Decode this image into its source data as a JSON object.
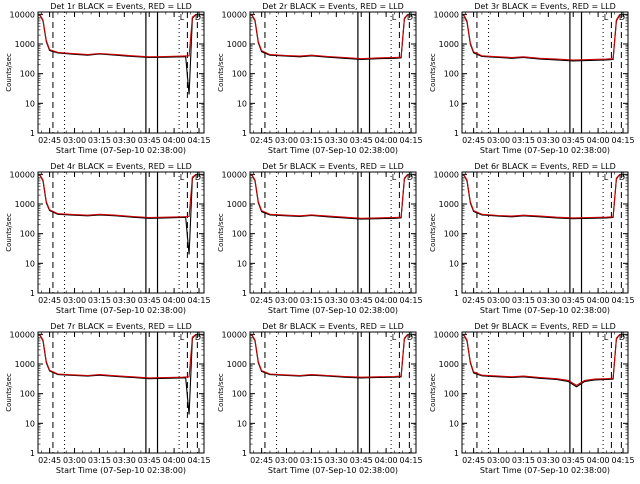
{
  "chart_data": [
    {
      "type": "line",
      "title": "Det 1r BLACK = Events, RED = LLD",
      "xlabel": "Start Time (07-Sep-10 02:38:00)",
      "ylabel": "Counts/sec",
      "log_y": true,
      "ylim": [
        1,
        12000
      ],
      "xlim": [
        "02:38",
        "04:18"
      ],
      "x_ticks": [
        "02:45",
        "03:00",
        "03:15",
        "03:30",
        "03:45",
        "04:00",
        "04:15"
      ],
      "y_ticks": [
        "1",
        "10",
        "100",
        "1000",
        "10000"
      ],
      "flag_labels": [
        "L",
        "D"
      ],
      "series": [
        {
          "name": "Events",
          "color": "#000000",
          "x": [
            "02:39",
            "02:41",
            "02:43",
            "02:45",
            "02:50",
            "03:00",
            "03:08",
            "03:15",
            "03:25",
            "03:35",
            "03:45",
            "03:55",
            "04:05",
            "04:07",
            "04:09",
            "04:11",
            "04:13"
          ],
          "y": [
            9800,
            6000,
            1200,
            600,
            500,
            450,
            420,
            460,
            420,
            380,
            350,
            360,
            370,
            370,
            20,
            7500,
            9800
          ]
        },
        {
          "name": "LLD",
          "color": "#cc0000",
          "x": [
            "02:39",
            "02:41",
            "02:43",
            "02:45",
            "02:50",
            "03:00",
            "03:08",
            "03:15",
            "03:25",
            "03:35",
            "03:45",
            "03:55",
            "04:05",
            "04:09",
            "04:11",
            "04:13"
          ],
          "y": [
            9900,
            6500,
            1300,
            650,
            520,
            470,
            440,
            480,
            440,
            400,
            370,
            380,
            390,
            400,
            8000,
            9900
          ]
        }
      ]
    },
    {
      "type": "line",
      "title": "Det 2r BLACK = Events, RED = LLD",
      "xlabel": "Start Time (07-Sep-10 02:38:00)",
      "ylabel": "Counts/sec",
      "log_y": true,
      "ylim": [
        1,
        12000
      ],
      "xlim": [
        "02:38",
        "04:18"
      ],
      "x_ticks": [
        "02:45",
        "03:00",
        "03:15",
        "03:30",
        "03:45",
        "04:00",
        "04:15"
      ],
      "y_ticks": [
        "1",
        "10",
        "100",
        "1000",
        "10000"
      ],
      "flag_labels": [
        "L",
        "D"
      ],
      "series": [
        {
          "name": "Events",
          "color": "#000000",
          "x": [
            "02:39",
            "02:41",
            "02:43",
            "02:45",
            "02:50",
            "03:00",
            "03:08",
            "03:15",
            "03:25",
            "03:35",
            "03:45",
            "03:55",
            "04:05",
            "04:09",
            "04:11",
            "04:13"
          ],
          "y": [
            9800,
            6000,
            1100,
            550,
            420,
            390,
            370,
            400,
            360,
            330,
            300,
            320,
            330,
            340,
            7000,
            9800
          ]
        },
        {
          "name": "LLD",
          "color": "#cc0000",
          "x": [
            "02:39",
            "02:41",
            "02:43",
            "02:45",
            "02:50",
            "03:00",
            "03:08",
            "03:15",
            "03:25",
            "03:35",
            "03:45",
            "03:55",
            "04:05",
            "04:09",
            "04:11",
            "04:13"
          ],
          "y": [
            9900,
            6500,
            1200,
            600,
            440,
            410,
            390,
            420,
            380,
            350,
            320,
            340,
            350,
            360,
            7500,
            9900
          ]
        }
      ]
    },
    {
      "type": "line",
      "title": "Det 3r BLACK = Events, RED = LLD",
      "xlabel": "Start Time (07-Sep-10 02:38:00)",
      "ylabel": "Counts/sec",
      "log_y": true,
      "ylim": [
        1,
        12000
      ],
      "xlim": [
        "02:38",
        "04:18"
      ],
      "x_ticks": [
        "02:45",
        "03:00",
        "03:15",
        "03:30",
        "03:45",
        "04:00",
        "04:15"
      ],
      "y_ticks": [
        "1",
        "10",
        "100",
        "1000",
        "10000"
      ],
      "flag_labels": [
        "L",
        "D"
      ],
      "series": [
        {
          "name": "Events",
          "color": "#000000",
          "x": [
            "02:39",
            "02:41",
            "02:43",
            "02:45",
            "02:50",
            "03:00",
            "03:08",
            "03:15",
            "03:25",
            "03:35",
            "03:45",
            "03:55",
            "04:05",
            "04:09",
            "04:11",
            "04:13"
          ],
          "y": [
            9500,
            5500,
            1000,
            500,
            380,
            350,
            330,
            350,
            310,
            290,
            270,
            280,
            290,
            300,
            6000,
            9500
          ]
        },
        {
          "name": "LLD",
          "color": "#cc0000",
          "x": [
            "02:39",
            "02:41",
            "02:43",
            "02:45",
            "02:50",
            "03:00",
            "03:08",
            "03:15",
            "03:25",
            "03:35",
            "03:45",
            "03:55",
            "04:05",
            "04:09",
            "04:11",
            "04:13"
          ],
          "y": [
            9800,
            6000,
            1100,
            540,
            400,
            370,
            350,
            370,
            330,
            310,
            290,
            300,
            310,
            320,
            6500,
            9800
          ]
        }
      ]
    },
    {
      "type": "line",
      "title": "Det 4r BLACK = Events, RED = LLD",
      "xlabel": "Start Time (07-Sep-10 02:38:00)",
      "ylabel": "Counts/sec",
      "log_y": true,
      "ylim": [
        1,
        12000
      ],
      "xlim": [
        "02:38",
        "04:18"
      ],
      "x_ticks": [
        "02:45",
        "03:00",
        "03:15",
        "03:30",
        "03:45",
        "04:00",
        "04:15"
      ],
      "y_ticks": [
        "1",
        "10",
        "100",
        "1000",
        "10000"
      ],
      "flag_labels": [
        "L",
        "D"
      ],
      "series": [
        {
          "name": "Events",
          "color": "#000000",
          "x": [
            "02:39",
            "02:41",
            "02:43",
            "02:45",
            "02:50",
            "03:00",
            "03:08",
            "03:15",
            "03:25",
            "03:35",
            "03:45",
            "03:55",
            "04:05",
            "04:07",
            "04:09",
            "04:11",
            "04:13"
          ],
          "y": [
            9800,
            6000,
            1100,
            600,
            450,
            420,
            400,
            430,
            400,
            360,
            330,
            340,
            350,
            350,
            20,
            7500,
            9800
          ]
        },
        {
          "name": "LLD",
          "color": "#cc0000",
          "x": [
            "02:39",
            "02:41",
            "02:43",
            "02:45",
            "02:50",
            "03:00",
            "03:08",
            "03:15",
            "03:25",
            "03:35",
            "03:45",
            "03:55",
            "04:05",
            "04:09",
            "04:11",
            "04:13"
          ],
          "y": [
            9900,
            6500,
            1200,
            640,
            470,
            440,
            420,
            450,
            420,
            380,
            350,
            360,
            370,
            380,
            8000,
            9900
          ]
        }
      ]
    },
    {
      "type": "line",
      "title": "Det 5r BLACK = Events, RED = LLD",
      "xlabel": "Start Time (07-Sep-10 02:38:00)",
      "ylabel": "Counts/sec",
      "log_y": true,
      "ylim": [
        1,
        12000
      ],
      "xlim": [
        "02:38",
        "04:18"
      ],
      "x_ticks": [
        "02:45",
        "03:00",
        "03:15",
        "03:30",
        "03:45",
        "04:00",
        "04:15"
      ],
      "y_ticks": [
        "1",
        "10",
        "100",
        "1000",
        "10000"
      ],
      "flag_labels": [
        "L",
        "D"
      ],
      "series": [
        {
          "name": "Events",
          "color": "#000000",
          "x": [
            "02:39",
            "02:41",
            "02:43",
            "02:45",
            "02:50",
            "03:00",
            "03:08",
            "03:15",
            "03:25",
            "03:35",
            "03:45",
            "03:55",
            "04:05",
            "04:09",
            "04:11",
            "04:13"
          ],
          "y": [
            9800,
            6000,
            1100,
            550,
            430,
            400,
            380,
            410,
            370,
            340,
            310,
            320,
            330,
            340,
            7000,
            9800
          ]
        },
        {
          "name": "LLD",
          "color": "#cc0000",
          "x": [
            "02:39",
            "02:41",
            "02:43",
            "02:45",
            "02:50",
            "03:00",
            "03:08",
            "03:15",
            "03:25",
            "03:35",
            "03:45",
            "03:55",
            "04:05",
            "04:09",
            "04:11",
            "04:13"
          ],
          "y": [
            9900,
            6500,
            1200,
            600,
            450,
            420,
            400,
            430,
            390,
            360,
            330,
            340,
            350,
            360,
            7500,
            9900
          ]
        }
      ]
    },
    {
      "type": "line",
      "title": "Det 6r BLACK = Events, RED = LLD",
      "xlabel": "Start Time (07-Sep-10 02:38:00)",
      "ylabel": "Counts/sec",
      "log_y": true,
      "ylim": [
        1,
        12000
      ],
      "xlim": [
        "02:38",
        "04:18"
      ],
      "x_ticks": [
        "02:45",
        "03:00",
        "03:15",
        "03:30",
        "03:45",
        "04:00",
        "04:15"
      ],
      "y_ticks": [
        "1",
        "10",
        "100",
        "1000",
        "10000"
      ],
      "flag_labels": [
        "L",
        "D"
      ],
      "series": [
        {
          "name": "Events",
          "color": "#000000",
          "x": [
            "02:39",
            "02:41",
            "02:43",
            "02:45",
            "02:50",
            "03:00",
            "03:08",
            "03:15",
            "03:25",
            "03:35",
            "03:45",
            "03:55",
            "04:05",
            "04:09",
            "04:11",
            "04:13"
          ],
          "y": [
            9800,
            6000,
            1100,
            560,
            430,
            390,
            370,
            400,
            370,
            340,
            320,
            330,
            340,
            350,
            7000,
            9800
          ]
        },
        {
          "name": "LLD",
          "color": "#cc0000",
          "x": [
            "02:39",
            "02:41",
            "02:43",
            "02:45",
            "02:50",
            "03:00",
            "03:08",
            "03:15",
            "03:25",
            "03:35",
            "03:45",
            "03:55",
            "04:05",
            "04:09",
            "04:11",
            "04:13"
          ],
          "y": [
            9900,
            6500,
            1200,
            600,
            450,
            410,
            390,
            420,
            390,
            360,
            340,
            350,
            360,
            370,
            7500,
            9900
          ]
        }
      ]
    },
    {
      "type": "line",
      "title": "Det 7r BLACK = Events, RED = LLD",
      "xlabel": "Start Time (07-Sep-10 02:38:00)",
      "ylabel": "Counts/sec",
      "log_y": true,
      "ylim": [
        1,
        12000
      ],
      "xlim": [
        "02:38",
        "04:18"
      ],
      "x_ticks": [
        "02:45",
        "03:00",
        "03:15",
        "03:30",
        "03:45",
        "04:00",
        "04:15"
      ],
      "y_ticks": [
        "1",
        "10",
        "100",
        "1000",
        "10000"
      ],
      "flag_labels": [
        "L",
        "D"
      ],
      "series": [
        {
          "name": "Events",
          "color": "#000000",
          "x": [
            "02:39",
            "02:41",
            "02:43",
            "02:45",
            "02:50",
            "03:00",
            "03:08",
            "03:15",
            "03:25",
            "03:35",
            "03:45",
            "03:55",
            "04:05",
            "04:07",
            "04:09",
            "04:11",
            "04:13"
          ],
          "y": [
            9800,
            6000,
            1100,
            580,
            440,
            410,
            390,
            420,
            380,
            350,
            320,
            330,
            340,
            340,
            20,
            7500,
            9800
          ]
        },
        {
          "name": "LLD",
          "color": "#cc0000",
          "x": [
            "02:39",
            "02:41",
            "02:43",
            "02:45",
            "02:50",
            "03:00",
            "03:08",
            "03:15",
            "03:25",
            "03:35",
            "03:45",
            "03:55",
            "04:05",
            "04:09",
            "04:11",
            "04:13"
          ],
          "y": [
            9900,
            6500,
            1200,
            620,
            460,
            430,
            410,
            440,
            400,
            370,
            340,
            350,
            360,
            370,
            8000,
            9900
          ]
        }
      ]
    },
    {
      "type": "line",
      "title": "Det 8r BLACK = Events, RED = LLD",
      "xlabel": "Start Time (07-Sep-10 02:38:00)",
      "ylabel": "Counts/sec",
      "log_y": true,
      "ylim": [
        1,
        12000
      ],
      "xlim": [
        "02:38",
        "04:18"
      ],
      "x_ticks": [
        "02:45",
        "03:00",
        "03:15",
        "03:30",
        "03:45",
        "04:00",
        "04:15"
      ],
      "y_ticks": [
        "1",
        "10",
        "100",
        "1000",
        "10000"
      ],
      "flag_labels": [
        "L",
        "D"
      ],
      "series": [
        {
          "name": "Events",
          "color": "#000000",
          "x": [
            "02:39",
            "02:41",
            "02:43",
            "02:45",
            "02:50",
            "03:00",
            "03:08",
            "03:15",
            "03:25",
            "03:35",
            "03:45",
            "03:55",
            "04:05",
            "04:09",
            "04:11",
            "04:13"
          ],
          "y": [
            9800,
            6000,
            1100,
            560,
            440,
            410,
            390,
            420,
            390,
            360,
            340,
            350,
            360,
            370,
            7000,
            9800
          ]
        },
        {
          "name": "LLD",
          "color": "#cc0000",
          "x": [
            "02:39",
            "02:41",
            "02:43",
            "02:45",
            "02:50",
            "03:00",
            "03:08",
            "03:15",
            "03:25",
            "03:35",
            "03:45",
            "03:55",
            "04:05",
            "04:09",
            "04:11",
            "04:13"
          ],
          "y": [
            9900,
            6500,
            1200,
            600,
            460,
            430,
            410,
            440,
            410,
            380,
            360,
            370,
            380,
            390,
            7500,
            9900
          ]
        }
      ]
    },
    {
      "type": "line",
      "title": "Det 9r BLACK = Events, RED = LLD",
      "xlabel": "Start Time (07-Sep-10 02:38:00)",
      "ylabel": "Counts/sec",
      "log_y": true,
      "ylim": [
        1,
        12000
      ],
      "xlim": [
        "02:38",
        "04:18"
      ],
      "x_ticks": [
        "02:45",
        "03:00",
        "03:15",
        "03:30",
        "03:45",
        "04:00",
        "04:15"
      ],
      "y_ticks": [
        "1",
        "10",
        "100",
        "1000",
        "10000"
      ],
      "flag_labels": [
        "L",
        "D"
      ],
      "series": [
        {
          "name": "Events",
          "color": "#000000",
          "x": [
            "02:39",
            "02:41",
            "02:43",
            "02:45",
            "02:50",
            "03:00",
            "03:08",
            "03:15",
            "03:25",
            "03:35",
            "03:42",
            "03:47",
            "03:52",
            "03:58",
            "04:05",
            "04:09",
            "04:11",
            "04:13"
          ],
          "y": [
            9800,
            6000,
            1100,
            500,
            400,
            370,
            350,
            370,
            330,
            300,
            260,
            170,
            260,
            290,
            300,
            310,
            7000,
            9800
          ]
        },
        {
          "name": "LLD",
          "color": "#cc0000",
          "x": [
            "02:39",
            "02:41",
            "02:43",
            "02:45",
            "02:50",
            "03:00",
            "03:08",
            "03:15",
            "03:25",
            "03:35",
            "03:42",
            "03:47",
            "03:52",
            "03:58",
            "04:05",
            "04:09",
            "04:11",
            "04:13"
          ],
          "y": [
            9900,
            6500,
            1200,
            540,
            420,
            390,
            370,
            390,
            350,
            320,
            280,
            190,
            280,
            310,
            320,
            330,
            7500,
            9900
          ]
        }
      ]
    }
  ]
}
